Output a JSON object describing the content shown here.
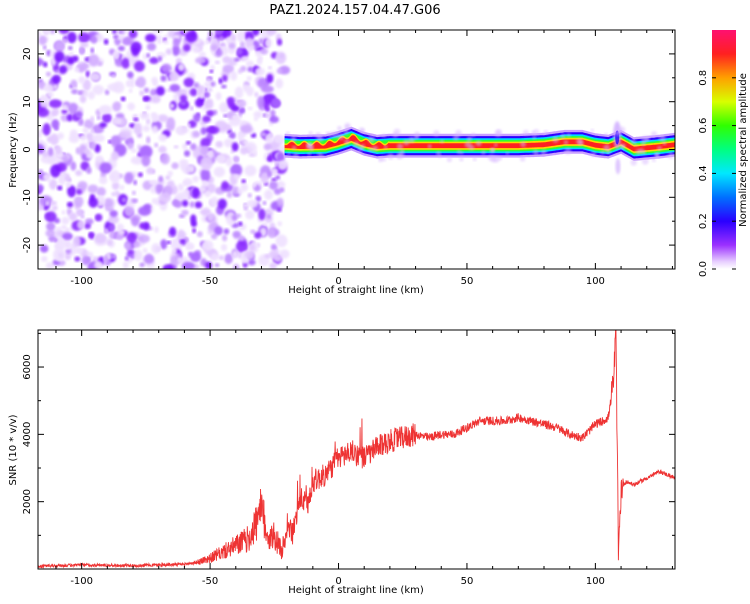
{
  "figure_title": "PAZ1.2024.157.04.47.G06",
  "chart_data": [
    {
      "type": "heatmap",
      "title": "",
      "xlabel": "Height of straight line (km)",
      "ylabel": "Frequency (Hz)",
      "xlim": [
        -117,
        131
      ],
      "ylim": [
        -25,
        25
      ],
      "x_ticks": [
        -100,
        -50,
        0,
        50,
        100
      ],
      "y_ticks": [
        -20,
        -10,
        0,
        10,
        20
      ],
      "colorbar": {
        "label": "Normalized spectral amplitude",
        "range": [
          0,
          1
        ],
        "ticks": [
          0.0,
          0.2,
          0.4,
          0.6,
          0.8
        ],
        "colormap": "gist_rainbow_r (white at 0)"
      },
      "description_values": {
        "noise_region_x": [
          -117,
          -21
        ],
        "signal_region_x": [
          -21,
          131
        ],
        "signal_frequency_track": [
          [
            -21,
            0.8
          ],
          [
            -15,
            0.6
          ],
          [
            -5,
            0.7
          ],
          [
            0,
            1.4
          ],
          [
            5,
            2.3
          ],
          [
            10,
            1.2
          ],
          [
            15,
            0.6
          ],
          [
            20,
            0.8
          ],
          [
            30,
            0.8
          ],
          [
            50,
            0.8
          ],
          [
            70,
            0.8
          ],
          [
            80,
            1.0
          ],
          [
            88,
            1.6
          ],
          [
            95,
            1.6
          ],
          [
            100,
            0.9
          ],
          [
            105,
            0.6
          ],
          [
            110,
            1.6
          ],
          [
            115,
            0.1
          ],
          [
            125,
            0.6
          ],
          [
            131,
            1.0
          ]
        ]
      }
    },
    {
      "type": "line",
      "title": "",
      "xlabel": "Height of straight line (km)",
      "ylabel": "SNR (10 * v/v)",
      "xlim": [
        -117,
        131
      ],
      "ylim": [
        0,
        7100
      ],
      "x_ticks": [
        -100,
        -50,
        0,
        50,
        100
      ],
      "y_ticks": [
        2000,
        4000,
        6000
      ],
      "series": [
        {
          "color": "#ee3333",
          "x": [
            -117,
            -100,
            -80,
            -60,
            -55,
            -50,
            -45,
            -40,
            -35,
            -30,
            -27,
            -25,
            -22,
            -20,
            -18,
            -15,
            -12,
            -10,
            -5,
            0,
            5,
            10,
            15,
            20,
            25,
            30,
            35,
            40,
            45,
            50,
            55,
            60,
            65,
            70,
            75,
            80,
            85,
            90,
            95,
            100,
            103,
            105,
            107,
            108,
            109,
            110,
            112,
            115,
            120,
            125,
            131
          ],
          "y": [
            80,
            120,
            100,
            140,
            200,
            320,
            500,
            700,
            900,
            1700,
            900,
            1000,
            500,
            1400,
            1000,
            2100,
            1900,
            2600,
            2800,
            3300,
            3500,
            3300,
            3600,
            3800,
            3900,
            4000,
            3900,
            4000,
            4000,
            4200,
            4400,
            4400,
            4400,
            4500,
            4400,
            4300,
            4200,
            4000,
            3900,
            4300,
            4400,
            4500,
            5500,
            7000,
            300,
            2400,
            2600,
            2500,
            2700,
            2900,
            2700
          ]
        }
      ]
    }
  ]
}
